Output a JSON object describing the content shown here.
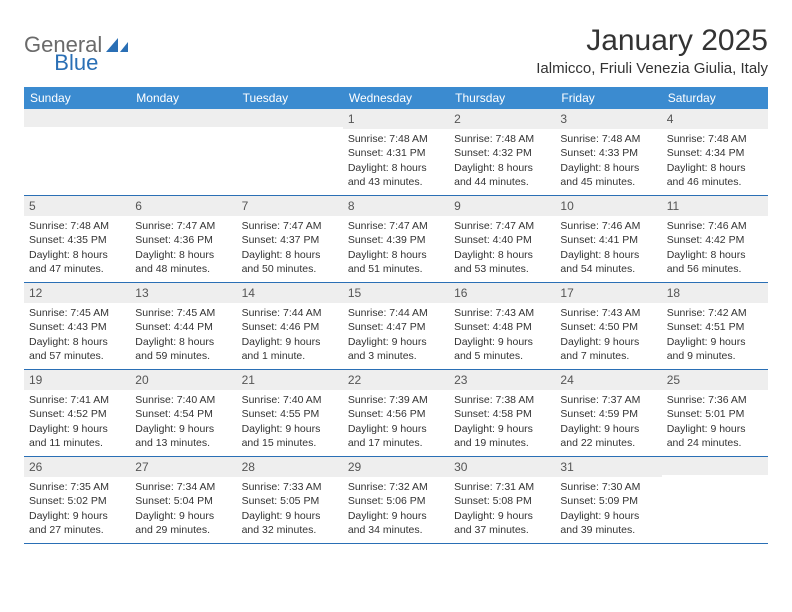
{
  "logo": {
    "general": "General",
    "blue": "Blue"
  },
  "title": "January 2025",
  "location": "Ialmicco, Friuli Venezia Giulia, Italy",
  "colors": {
    "header_bg": "#3b8bd0",
    "header_text": "#ffffff",
    "border": "#2a6fb5",
    "daynum_bg": "#eeeeee",
    "text": "#333333"
  },
  "day_names": [
    "Sunday",
    "Monday",
    "Tuesday",
    "Wednesday",
    "Thursday",
    "Friday",
    "Saturday"
  ],
  "weeks": [
    [
      {
        "n": "",
        "sr": "",
        "ss": "",
        "dl1": "",
        "dl2": ""
      },
      {
        "n": "",
        "sr": "",
        "ss": "",
        "dl1": "",
        "dl2": ""
      },
      {
        "n": "",
        "sr": "",
        "ss": "",
        "dl1": "",
        "dl2": ""
      },
      {
        "n": "1",
        "sr": "Sunrise: 7:48 AM",
        "ss": "Sunset: 4:31 PM",
        "dl1": "Daylight: 8 hours",
        "dl2": "and 43 minutes."
      },
      {
        "n": "2",
        "sr": "Sunrise: 7:48 AM",
        "ss": "Sunset: 4:32 PM",
        "dl1": "Daylight: 8 hours",
        "dl2": "and 44 minutes."
      },
      {
        "n": "3",
        "sr": "Sunrise: 7:48 AM",
        "ss": "Sunset: 4:33 PM",
        "dl1": "Daylight: 8 hours",
        "dl2": "and 45 minutes."
      },
      {
        "n": "4",
        "sr": "Sunrise: 7:48 AM",
        "ss": "Sunset: 4:34 PM",
        "dl1": "Daylight: 8 hours",
        "dl2": "and 46 minutes."
      }
    ],
    [
      {
        "n": "5",
        "sr": "Sunrise: 7:48 AM",
        "ss": "Sunset: 4:35 PM",
        "dl1": "Daylight: 8 hours",
        "dl2": "and 47 minutes."
      },
      {
        "n": "6",
        "sr": "Sunrise: 7:47 AM",
        "ss": "Sunset: 4:36 PM",
        "dl1": "Daylight: 8 hours",
        "dl2": "and 48 minutes."
      },
      {
        "n": "7",
        "sr": "Sunrise: 7:47 AM",
        "ss": "Sunset: 4:37 PM",
        "dl1": "Daylight: 8 hours",
        "dl2": "and 50 minutes."
      },
      {
        "n": "8",
        "sr": "Sunrise: 7:47 AM",
        "ss": "Sunset: 4:39 PM",
        "dl1": "Daylight: 8 hours",
        "dl2": "and 51 minutes."
      },
      {
        "n": "9",
        "sr": "Sunrise: 7:47 AM",
        "ss": "Sunset: 4:40 PM",
        "dl1": "Daylight: 8 hours",
        "dl2": "and 53 minutes."
      },
      {
        "n": "10",
        "sr": "Sunrise: 7:46 AM",
        "ss": "Sunset: 4:41 PM",
        "dl1": "Daylight: 8 hours",
        "dl2": "and 54 minutes."
      },
      {
        "n": "11",
        "sr": "Sunrise: 7:46 AM",
        "ss": "Sunset: 4:42 PM",
        "dl1": "Daylight: 8 hours",
        "dl2": "and 56 minutes."
      }
    ],
    [
      {
        "n": "12",
        "sr": "Sunrise: 7:45 AM",
        "ss": "Sunset: 4:43 PM",
        "dl1": "Daylight: 8 hours",
        "dl2": "and 57 minutes."
      },
      {
        "n": "13",
        "sr": "Sunrise: 7:45 AM",
        "ss": "Sunset: 4:44 PM",
        "dl1": "Daylight: 8 hours",
        "dl2": "and 59 minutes."
      },
      {
        "n": "14",
        "sr": "Sunrise: 7:44 AM",
        "ss": "Sunset: 4:46 PM",
        "dl1": "Daylight: 9 hours",
        "dl2": "and 1 minute."
      },
      {
        "n": "15",
        "sr": "Sunrise: 7:44 AM",
        "ss": "Sunset: 4:47 PM",
        "dl1": "Daylight: 9 hours",
        "dl2": "and 3 minutes."
      },
      {
        "n": "16",
        "sr": "Sunrise: 7:43 AM",
        "ss": "Sunset: 4:48 PM",
        "dl1": "Daylight: 9 hours",
        "dl2": "and 5 minutes."
      },
      {
        "n": "17",
        "sr": "Sunrise: 7:43 AM",
        "ss": "Sunset: 4:50 PM",
        "dl1": "Daylight: 9 hours",
        "dl2": "and 7 minutes."
      },
      {
        "n": "18",
        "sr": "Sunrise: 7:42 AM",
        "ss": "Sunset: 4:51 PM",
        "dl1": "Daylight: 9 hours",
        "dl2": "and 9 minutes."
      }
    ],
    [
      {
        "n": "19",
        "sr": "Sunrise: 7:41 AM",
        "ss": "Sunset: 4:52 PM",
        "dl1": "Daylight: 9 hours",
        "dl2": "and 11 minutes."
      },
      {
        "n": "20",
        "sr": "Sunrise: 7:40 AM",
        "ss": "Sunset: 4:54 PM",
        "dl1": "Daylight: 9 hours",
        "dl2": "and 13 minutes."
      },
      {
        "n": "21",
        "sr": "Sunrise: 7:40 AM",
        "ss": "Sunset: 4:55 PM",
        "dl1": "Daylight: 9 hours",
        "dl2": "and 15 minutes."
      },
      {
        "n": "22",
        "sr": "Sunrise: 7:39 AM",
        "ss": "Sunset: 4:56 PM",
        "dl1": "Daylight: 9 hours",
        "dl2": "and 17 minutes."
      },
      {
        "n": "23",
        "sr": "Sunrise: 7:38 AM",
        "ss": "Sunset: 4:58 PM",
        "dl1": "Daylight: 9 hours",
        "dl2": "and 19 minutes."
      },
      {
        "n": "24",
        "sr": "Sunrise: 7:37 AM",
        "ss": "Sunset: 4:59 PM",
        "dl1": "Daylight: 9 hours",
        "dl2": "and 22 minutes."
      },
      {
        "n": "25",
        "sr": "Sunrise: 7:36 AM",
        "ss": "Sunset: 5:01 PM",
        "dl1": "Daylight: 9 hours",
        "dl2": "and 24 minutes."
      }
    ],
    [
      {
        "n": "26",
        "sr": "Sunrise: 7:35 AM",
        "ss": "Sunset: 5:02 PM",
        "dl1": "Daylight: 9 hours",
        "dl2": "and 27 minutes."
      },
      {
        "n": "27",
        "sr": "Sunrise: 7:34 AM",
        "ss": "Sunset: 5:04 PM",
        "dl1": "Daylight: 9 hours",
        "dl2": "and 29 minutes."
      },
      {
        "n": "28",
        "sr": "Sunrise: 7:33 AM",
        "ss": "Sunset: 5:05 PM",
        "dl1": "Daylight: 9 hours",
        "dl2": "and 32 minutes."
      },
      {
        "n": "29",
        "sr": "Sunrise: 7:32 AM",
        "ss": "Sunset: 5:06 PM",
        "dl1": "Daylight: 9 hours",
        "dl2": "and 34 minutes."
      },
      {
        "n": "30",
        "sr": "Sunrise: 7:31 AM",
        "ss": "Sunset: 5:08 PM",
        "dl1": "Daylight: 9 hours",
        "dl2": "and 37 minutes."
      },
      {
        "n": "31",
        "sr": "Sunrise: 7:30 AM",
        "ss": "Sunset: 5:09 PM",
        "dl1": "Daylight: 9 hours",
        "dl2": "and 39 minutes."
      },
      {
        "n": "",
        "sr": "",
        "ss": "",
        "dl1": "",
        "dl2": ""
      }
    ]
  ]
}
